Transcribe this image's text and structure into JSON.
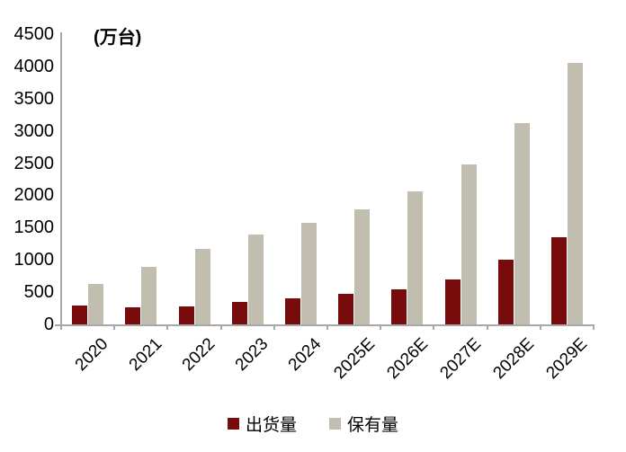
{
  "chart_data": {
    "type": "bar",
    "title": "",
    "unit": "(万台)",
    "categories": [
      "2020",
      "2021",
      "2022",
      "2023",
      "2024",
      "2025E",
      "2026E",
      "2027E",
      "2028E",
      "2029E"
    ],
    "series": [
      {
        "name": "出货量",
        "color": "#780B0B",
        "values": [
          290,
          260,
          280,
          350,
          400,
          470,
          550,
          700,
          1000,
          1350
        ]
      },
      {
        "name": "保有量",
        "color": "#C1BEAF",
        "values": [
          630,
          890,
          1170,
          1390,
          1580,
          1780,
          2060,
          2480,
          3120,
          4060
        ]
      }
    ],
    "ylim": [
      0,
      4500
    ],
    "yticks": [
      0,
      500,
      1000,
      1500,
      2000,
      2500,
      3000,
      3500,
      4000,
      4500
    ],
    "xlabel": "",
    "ylabel": "",
    "grid": false,
    "legend_position": "bottom",
    "x_label_rotation_deg": 45
  },
  "colors": {
    "axis": "#A8A8A8",
    "text": "#000000",
    "background": "#FFFFFF"
  }
}
